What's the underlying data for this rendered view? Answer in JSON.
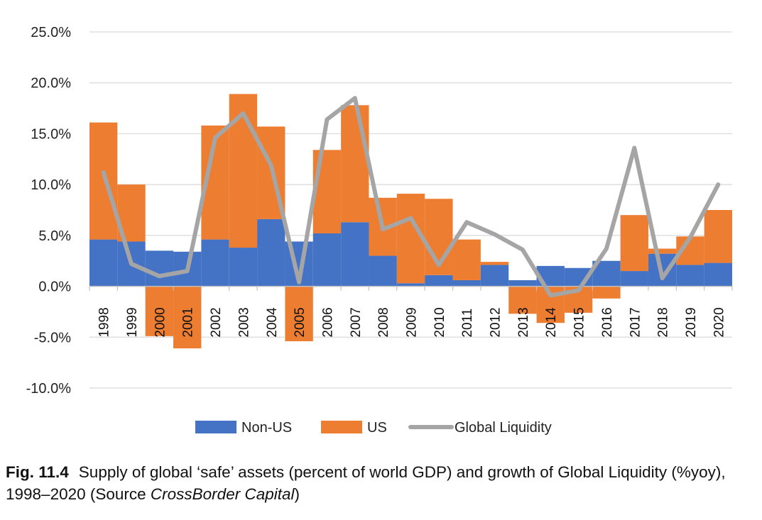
{
  "chart_data": {
    "type": "bar",
    "stacked": true,
    "categories": [
      "1998",
      "1999",
      "2000",
      "2001",
      "2002",
      "2003",
      "2004",
      "2005",
      "2006",
      "2007",
      "2008",
      "2009",
      "2010",
      "2011",
      "2012",
      "2013",
      "2014",
      "2015",
      "2016",
      "2017",
      "2018",
      "2019",
      "2020"
    ],
    "series": [
      {
        "name": "Non-US",
        "kind": "bar",
        "color": "#4472C4",
        "values": [
          4.6,
          4.4,
          3.5,
          3.4,
          4.6,
          3.8,
          6.6,
          4.4,
          5.2,
          6.3,
          3.0,
          0.3,
          1.1,
          0.6,
          2.1,
          0.6,
          2.0,
          1.8,
          2.5,
          1.5,
          3.2,
          2.1,
          2.3
        ]
      },
      {
        "name": "US",
        "kind": "bar",
        "color": "#ED7D31",
        "values": [
          11.5,
          5.6,
          -4.9,
          -6.1,
          11.2,
          15.1,
          9.1,
          -5.4,
          8.2,
          11.5,
          5.7,
          8.8,
          7.5,
          4.0,
          0.3,
          -2.7,
          -3.6,
          -2.6,
          -1.2,
          5.5,
          0.5,
          2.8,
          5.2
        ]
      },
      {
        "name": "Global Liquidity",
        "kind": "line",
        "color": "#A5A5A5",
        "values": [
          11.2,
          2.2,
          1.0,
          1.5,
          14.6,
          17.0,
          11.9,
          0.4,
          16.4,
          18.5,
          5.6,
          6.7,
          2.1,
          6.3,
          5.1,
          3.6,
          -0.9,
          -0.4,
          3.7,
          13.6,
          0.8,
          4.8,
          10.0
        ]
      }
    ],
    "ylim": [
      -10,
      25
    ],
    "yticks": [
      -10,
      -5,
      0,
      5,
      10,
      15,
      20,
      25
    ],
    "ytick_labels": [
      "-10.0%",
      "-5.0%",
      "0.0%",
      "5.0%",
      "10.0%",
      "15.0%",
      "20.0%",
      "25.0%"
    ],
    "grid": true,
    "legend_position": "bottom"
  },
  "caption": {
    "label": "Fig. 11.4",
    "text_before": "Supply of global ‘safe’ assets (percent of world GDP) and growth of Global Liquidity (%yoy), 1998–2020 (Source ",
    "source": "CrossBorder Capital",
    "text_after": ")"
  }
}
